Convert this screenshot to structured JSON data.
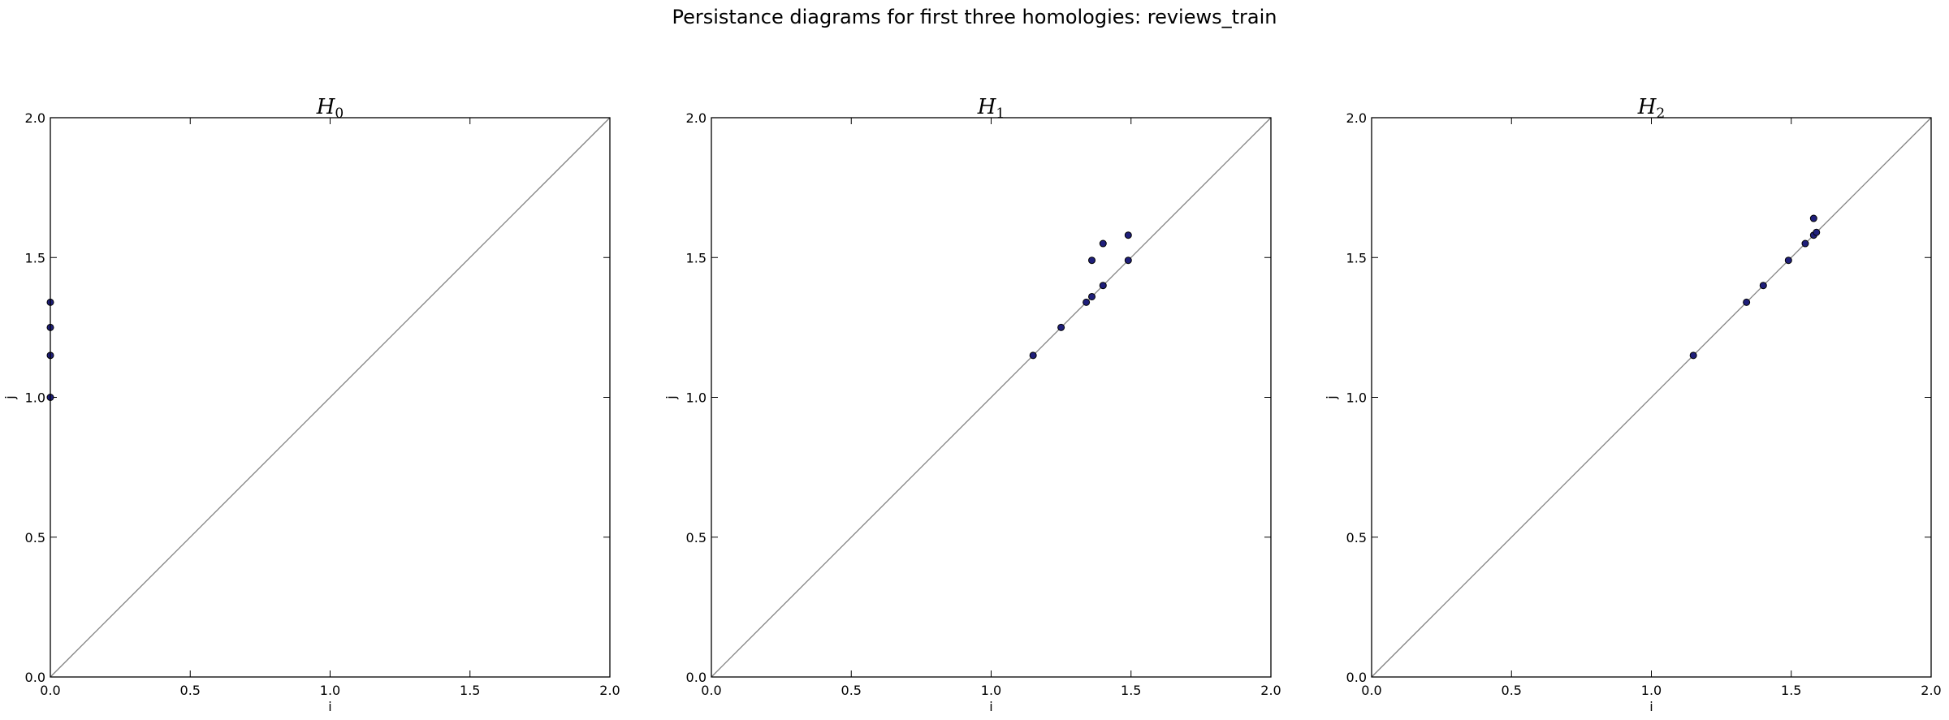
{
  "figure": {
    "title": "Persistance diagrams for first three homologies: reviews_train"
  },
  "colors": {
    "point_fill": "#1f1f7a",
    "point_stroke": "#000000",
    "diagonal": "#808080",
    "frame": "#000000"
  },
  "chart_data": [
    {
      "type": "scatter",
      "title": "H",
      "title_subscript": "0",
      "xlabel": "i",
      "ylabel": "j",
      "xlim": [
        0.0,
        2.0
      ],
      "ylim": [
        0.0,
        2.0
      ],
      "xticks": [
        "0.0",
        "0.5",
        "1.0",
        "1.5",
        "2.0"
      ],
      "yticks": [
        "0.0",
        "0.5",
        "1.0",
        "1.5",
        "2.0"
      ],
      "diagonal": true,
      "grid": false,
      "points": [
        {
          "x": 0.0,
          "y": 1.0
        },
        {
          "x": 0.0,
          "y": 1.15
        },
        {
          "x": 0.0,
          "y": 1.25
        },
        {
          "x": 0.0,
          "y": 1.34
        }
      ]
    },
    {
      "type": "scatter",
      "title": "H",
      "title_subscript": "1",
      "xlabel": "i",
      "ylabel": "j",
      "xlim": [
        0.0,
        2.0
      ],
      "ylim": [
        0.0,
        2.0
      ],
      "xticks": [
        "0.0",
        "0.5",
        "1.0",
        "1.5",
        "2.0"
      ],
      "yticks": [
        "0.0",
        "0.5",
        "1.0",
        "1.5",
        "2.0"
      ],
      "diagonal": true,
      "grid": false,
      "points": [
        {
          "x": 1.15,
          "y": 1.15
        },
        {
          "x": 1.25,
          "y": 1.25
        },
        {
          "x": 1.34,
          "y": 1.34
        },
        {
          "x": 1.36,
          "y": 1.36
        },
        {
          "x": 1.4,
          "y": 1.4
        },
        {
          "x": 1.49,
          "y": 1.49
        },
        {
          "x": 1.36,
          "y": 1.49
        },
        {
          "x": 1.4,
          "y": 1.55
        },
        {
          "x": 1.49,
          "y": 1.58
        }
      ]
    },
    {
      "type": "scatter",
      "title": "H",
      "title_subscript": "2",
      "xlabel": "i",
      "ylabel": "j",
      "xlim": [
        0.0,
        2.0
      ],
      "ylim": [
        0.0,
        2.0
      ],
      "xticks": [
        "0.0",
        "0.5",
        "1.0",
        "1.5",
        "2.0"
      ],
      "yticks": [
        "0.0",
        "0.5",
        "1.0",
        "1.5",
        "2.0"
      ],
      "diagonal": true,
      "grid": false,
      "points": [
        {
          "x": 1.15,
          "y": 1.15
        },
        {
          "x": 1.34,
          "y": 1.34
        },
        {
          "x": 1.4,
          "y": 1.4
        },
        {
          "x": 1.49,
          "y": 1.49
        },
        {
          "x": 1.55,
          "y": 1.55
        },
        {
          "x": 1.58,
          "y": 1.58
        },
        {
          "x": 1.59,
          "y": 1.59
        },
        {
          "x": 1.58,
          "y": 1.64
        }
      ]
    }
  ]
}
